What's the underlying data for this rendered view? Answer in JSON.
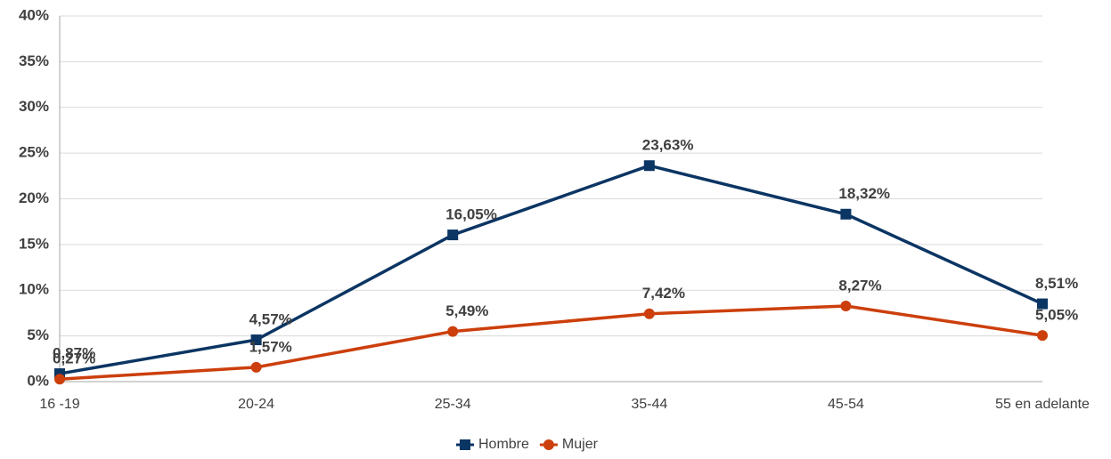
{
  "chart_data": {
    "type": "line",
    "categories": [
      "16 -19",
      "20-24",
      "25-34",
      "35-44",
      "45-54",
      "55 en adelante"
    ],
    "series": [
      {
        "name": "Hombre",
        "color": "#0b3563",
        "marker": "square",
        "values": [
          0.87,
          4.57,
          16.05,
          23.63,
          18.32,
          8.51
        ],
        "value_labels": [
          "0,87%",
          "4,57%",
          "16,05%",
          "23,63%",
          "18,32%",
          "8,51%"
        ]
      },
      {
        "name": "Mujer",
        "color": "#cc3f0c",
        "marker": "circle",
        "values": [
          0.27,
          1.57,
          5.49,
          7.42,
          8.27,
          5.05
        ],
        "value_labels": [
          "0,27%",
          "1,57%",
          "5,49%",
          "7,42%",
          "8,27%",
          "5,05%"
        ]
      }
    ],
    "ylim": [
      0,
      40
    ],
    "yticks": [
      {
        "value": 0,
        "label": "0%"
      },
      {
        "value": 5,
        "label": "5%"
      },
      {
        "value": 10,
        "label": "10%"
      },
      {
        "value": 15,
        "label": "15%"
      },
      {
        "value": 20,
        "label": "20%"
      },
      {
        "value": 25,
        "label": "25%"
      },
      {
        "value": 30,
        "label": "30%"
      },
      {
        "value": 35,
        "label": "35%"
      },
      {
        "value": 40,
        "label": "40%"
      }
    ],
    "grid": true,
    "legend": "bottom"
  }
}
